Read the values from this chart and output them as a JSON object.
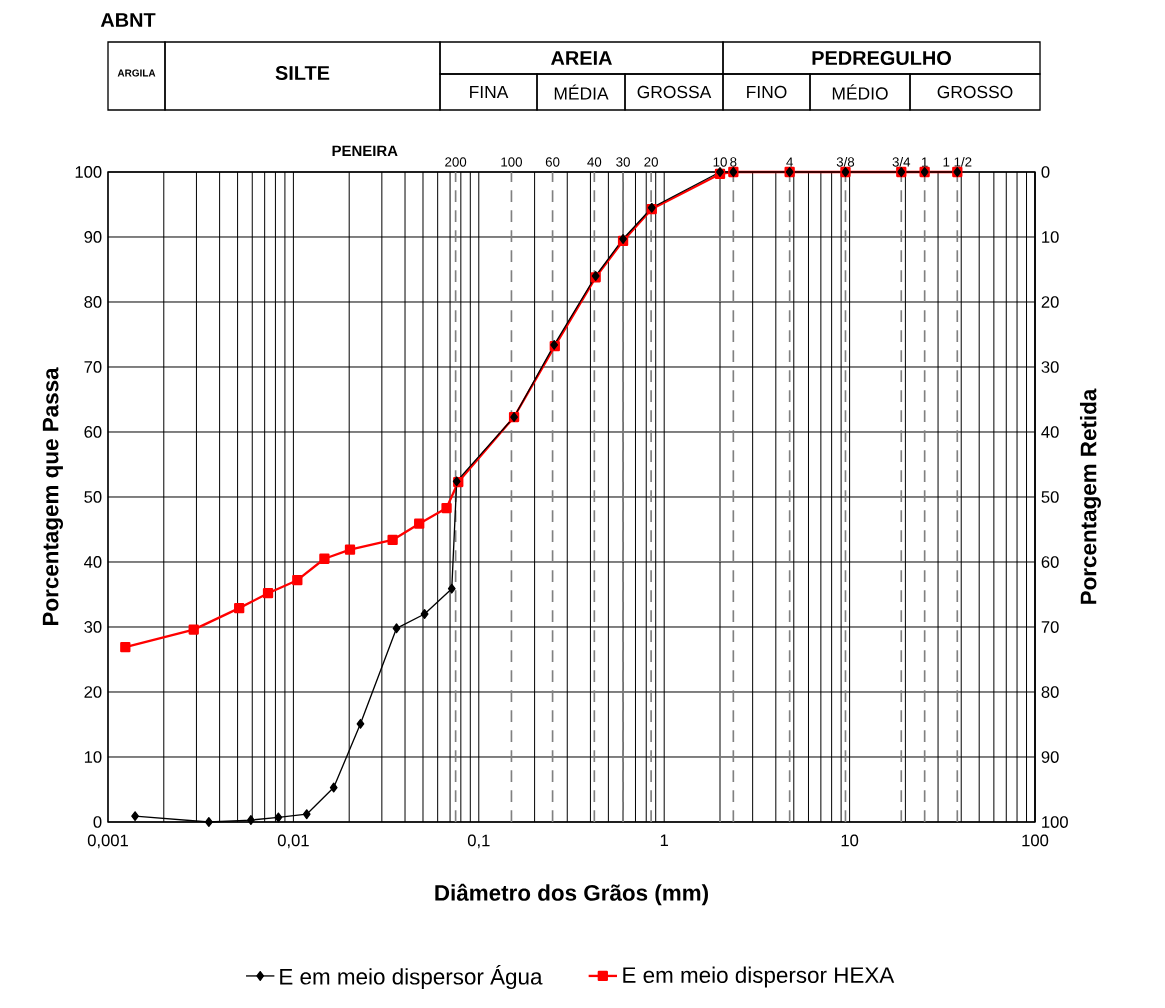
{
  "chart_data": [
    {
      "type": "other",
      "title": "ABNT",
      "annotations": [
        "ARGILA",
        "SILTE",
        "AREIA",
        "PEDREGULHO",
        "FINA",
        "MÉDIA",
        "GROSSA",
        "FINO",
        "MÉDIO",
        "GROSSO"
      ]
    },
    {
      "type": "line",
      "xlabel": "Diâmetro dos Grãos (mm)",
      "ylabel": "Porcentagem que Passa",
      "y2label": "Porcentagem Retida",
      "log": "x",
      "grid": true,
      "legend": "bottom",
      "xlim": [
        0.001,
        100
      ],
      "xticks": [
        {
          "value": 0.001,
          "label": "0,001"
        },
        {
          "value": 0.01,
          "label": "0,01"
        },
        {
          "value": 0.1,
          "label": "0,1"
        },
        {
          "value": 1,
          "label": "1"
        },
        {
          "value": 10,
          "label": "10"
        },
        {
          "value": 100,
          "label": "100"
        }
      ],
      "annotations": [
        "PENEIRA",
        {
          "text": "200",
          "x": 0.075,
          "y": 100
        },
        {
          "text": "100",
          "x": 0.15,
          "y": 100
        },
        {
          "text": "60",
          "x": 0.25,
          "y": 100
        },
        {
          "text": "40",
          "x": 0.42,
          "y": 100
        },
        {
          "text": "30",
          "x": 0.6,
          "y": 100
        },
        {
          "text": "20",
          "x": 0.85,
          "y": 100
        },
        {
          "text": "10",
          "x": 2.0,
          "y": 100
        },
        {
          "text": "8",
          "x": 2.36,
          "y": 100
        },
        {
          "text": "4",
          "x": 4.75,
          "y": 100
        },
        {
          "text": "3/8",
          "x": 9.5,
          "y": 100
        },
        {
          "text": "3/4",
          "x": 19,
          "y": 100
        },
        {
          "text": "1",
          "x": 25.4,
          "y": 100
        },
        {
          "text": "1 1/2",
          "x": 38.1,
          "y": 100
        }
      ],
      "ylim": [
        0,
        100
      ],
      "yticks": [
        0,
        10,
        20,
        30,
        40,
        50,
        60,
        70,
        80,
        90,
        100
      ],
      "y2lim": [
        100,
        0
      ],
      "y2ticks": [
        0,
        10,
        20,
        30,
        40,
        50,
        60,
        70,
        80,
        90,
        100
      ],
      "series": [
        {
          "name": "E em meio dispersor Água",
          "color": "#000000",
          "marker": "diamond",
          "x": [
            0.0014,
            0.0035,
            0.0059,
            0.0083,
            0.0118,
            0.0165,
            0.023,
            0.036,
            0.051,
            0.0715,
            0.076,
            0.155,
            0.255,
            0.427,
            0.6,
            0.857,
            2.0,
            2.36,
            4.75,
            9.5,
            19,
            25.4,
            38.1
          ],
          "values": [
            0.9,
            0,
            0.3,
            0.7,
            1.2,
            5.3,
            15.1,
            29.8,
            32.0,
            35.9,
            52.4,
            62.3,
            73.4,
            84.0,
            89.7,
            94.5,
            100,
            100,
            100,
            100,
            100,
            100,
            100
          ]
        },
        {
          "name": "E em meio dispersor HEXA",
          "color": "#ff0000",
          "marker": "square",
          "x": [
            0.00124,
            0.0029,
            0.0051,
            0.0073,
            0.0105,
            0.0147,
            0.0202,
            0.0343,
            0.0477,
            0.067,
            0.0775,
            0.155,
            0.257,
            0.427,
            0.6,
            0.857,
            2.0,
            2.36,
            4.75,
            9.5,
            19,
            25.4,
            38.1
          ],
          "values": [
            26.9,
            29.6,
            32.9,
            35.2,
            37.2,
            40.5,
            41.9,
            43.4,
            45.9,
            48.3,
            52.3,
            62.3,
            73.2,
            83.8,
            89.4,
            94.3,
            99.7,
            100,
            100,
            100,
            100,
            100,
            100
          ]
        }
      ],
      "ref_lines": [
        {
          "axis": "x",
          "value": 0.075,
          "line_style": "dashed",
          "color": "#808080"
        },
        {
          "axis": "x",
          "value": 0.15,
          "line_style": "dashed",
          "color": "#808080"
        },
        {
          "axis": "x",
          "value": 0.25,
          "line_style": "dashed",
          "color": "#808080"
        },
        {
          "axis": "x",
          "value": 0.42,
          "line_style": "dashed",
          "color": "#808080"
        },
        {
          "axis": "x",
          "value": 0.6,
          "line_style": "dashed",
          "color": "#808080"
        },
        {
          "axis": "x",
          "value": 0.85,
          "line_style": "dashed",
          "color": "#808080"
        },
        {
          "axis": "x",
          "value": 2.0,
          "line_style": "dashed",
          "color": "#808080"
        },
        {
          "axis": "x",
          "value": 2.36,
          "line_style": "dashed",
          "color": "#808080"
        },
        {
          "axis": "x",
          "value": 4.75,
          "line_style": "dashed",
          "color": "#808080"
        },
        {
          "axis": "x",
          "value": 9.5,
          "line_style": "dashed",
          "color": "#808080"
        },
        {
          "axis": "x",
          "value": 19,
          "line_style": "dashed",
          "color": "#808080"
        },
        {
          "axis": "x",
          "value": 25.4,
          "line_style": "dashed",
          "color": "#808080"
        },
        {
          "axis": "x",
          "value": 38.1,
          "line_style": "dashed",
          "color": "#808080"
        }
      ]
    }
  ]
}
